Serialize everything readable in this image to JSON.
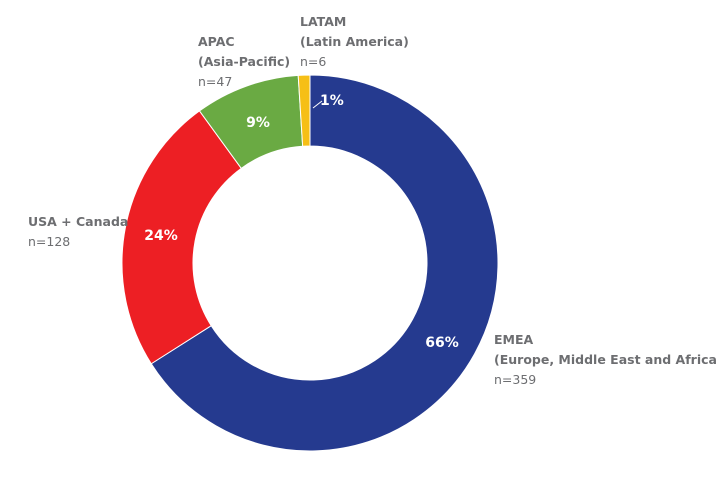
{
  "chart_data": {
    "type": "pie",
    "variant": "donut",
    "categories": [
      "EMEA",
      "USA + Canada",
      "APAC",
      "LATAM"
    ],
    "values": [
      66,
      24,
      9,
      1
    ],
    "value_labels": [
      "66%",
      "24%",
      "9%",
      "1%"
    ],
    "counts": [
      "n=359",
      "n=128",
      "n=47",
      "n=6"
    ],
    "subtitles": [
      "(Europe, Middle East and Africa)",
      "",
      "(Asia-Pacific)",
      "(Latin America)"
    ],
    "colors": [
      "#253a8f",
      "#ed1f24",
      "#6aaa43",
      "#f6bf16"
    ],
    "start": "12 o'clock",
    "direction": "clockwise",
    "legend": "none (direct labels)"
  }
}
